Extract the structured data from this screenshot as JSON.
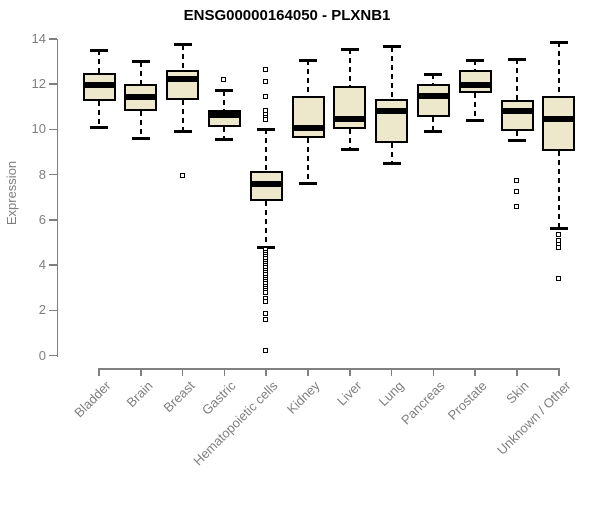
{
  "title": "ENSG00000164050 - PLXNB1",
  "colors": {
    "box_fill": "#EDE8CC",
    "box_border": "#000000",
    "median": "#000000",
    "axis_line": "#808080",
    "axis_text": "#7F7F7F",
    "title_text": "#000000",
    "background": "#FFFFFF"
  },
  "chart_data": {
    "type": "boxplot",
    "title": "ENSG00000164050 - PLXNB1",
    "xlabel": "",
    "ylabel": "Expression",
    "ylim": [
      0,
      14
    ],
    "yticks": [
      0,
      2,
      4,
      6,
      8,
      10,
      12,
      14
    ],
    "grid": false,
    "legend": false,
    "x_label_rotation_deg": 45,
    "categories": [
      "Bladder",
      "Brain",
      "Breast",
      "Gastric",
      "Hematopoietic cells",
      "Kidney",
      "Liver",
      "Lung",
      "Pancreas",
      "Prostate",
      "Skin",
      "Unknown / Other"
    ],
    "series": [
      {
        "name": "Bladder",
        "whisker_low": 10.1,
        "q1": 11.25,
        "median": 11.95,
        "q3": 12.5,
        "whisker_high": 13.5,
        "outliers": []
      },
      {
        "name": "Brain",
        "whisker_low": 9.6,
        "q1": 10.8,
        "median": 11.45,
        "q3": 12.0,
        "whisker_high": 13.0,
        "outliers": []
      },
      {
        "name": "Breast",
        "whisker_low": 9.9,
        "q1": 11.3,
        "median": 12.25,
        "q3": 12.65,
        "whisker_high": 13.75,
        "outliers": [
          7.95
        ]
      },
      {
        "name": "Gastric",
        "whisker_low": 9.55,
        "q1": 10.1,
        "median": 10.65,
        "q3": 10.85,
        "whisker_high": 11.7,
        "outliers": [
          12.2
        ]
      },
      {
        "name": "Hematopoietic cells",
        "whisker_low": 4.77,
        "q1": 6.85,
        "median": 7.6,
        "q3": 8.15,
        "whisker_high": 10.0,
        "outliers": [
          12.65,
          12.1,
          11.45,
          10.8,
          10.65,
          10.5,
          10.4,
          4.65,
          4.55,
          4.45,
          4.35,
          4.25,
          4.15,
          4.05,
          3.95,
          3.85,
          3.75,
          3.65,
          3.55,
          3.45,
          3.35,
          3.25,
          3.15,
          3.05,
          2.95,
          2.85,
          2.75,
          2.5,
          2.35,
          1.85,
          1.55,
          0.2
        ]
      },
      {
        "name": "Kidney",
        "whisker_low": 7.6,
        "q1": 9.6,
        "median": 10.05,
        "q3": 11.5,
        "whisker_high": 13.05,
        "outliers": []
      },
      {
        "name": "Liver",
        "whisker_low": 9.1,
        "q1": 10.0,
        "median": 10.45,
        "q3": 11.9,
        "whisker_high": 13.55,
        "outliers": []
      },
      {
        "name": "Lung",
        "whisker_low": 8.5,
        "q1": 9.4,
        "median": 10.8,
        "q3": 11.35,
        "whisker_high": 13.65,
        "outliers": []
      },
      {
        "name": "Pancreas",
        "whisker_low": 9.9,
        "q1": 10.55,
        "median": 11.5,
        "q3": 12.0,
        "whisker_high": 12.45,
        "outliers": []
      },
      {
        "name": "Prostate",
        "whisker_low": 10.4,
        "q1": 11.6,
        "median": 11.95,
        "q3": 12.65,
        "whisker_high": 13.05,
        "outliers": []
      },
      {
        "name": "Skin",
        "whisker_low": 9.5,
        "q1": 9.95,
        "median": 10.8,
        "q3": 11.3,
        "whisker_high": 13.1,
        "outliers": [
          7.7,
          7.25,
          6.55
        ]
      },
      {
        "name": "Unknown / Other",
        "whisker_low": 5.6,
        "q1": 9.05,
        "median": 10.45,
        "q3": 11.5,
        "whisker_high": 13.85,
        "outliers": [
          5.35,
          5.05,
          4.9,
          4.75,
          3.4
        ]
      }
    ]
  }
}
